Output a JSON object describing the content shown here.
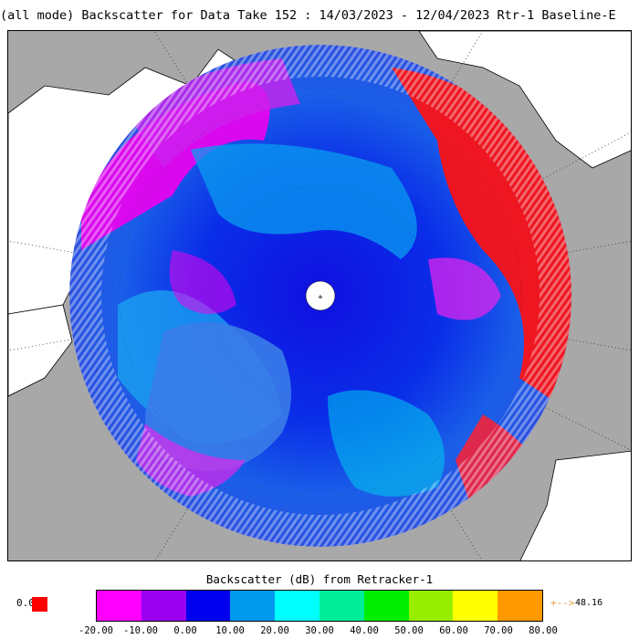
{
  "title": "(all mode) Backscatter for Data Take 152 : 14/03/2023 - 12/04/2023 Rtr-1 Baseline-E",
  "map": {
    "projection": "polar-stereographic-north",
    "land_color": "#ffffff",
    "ocean_color": "#a8a8a8",
    "graticule_color": "#333333"
  },
  "colorbar": {
    "title": "Backscatter (dB) from Retracker-1",
    "colors": [
      "#ff00ff",
      "#9900ee",
      "#0000ee",
      "#0099ee",
      "#00ffff",
      "#00ee99",
      "#00ee00",
      "#99ee00",
      "#ffff00",
      "#ff9900"
    ],
    "ticks": [
      "-20.00",
      "-10.00",
      "0.00",
      "10.00",
      "20.00",
      "30.00",
      "40.00",
      "50.00",
      "60.00",
      "70.00",
      "80.00"
    ],
    "zero_label": "0.0",
    "zero_color": "#ff0000",
    "max_arrow": "+-->",
    "max_value": "48.16"
  }
}
